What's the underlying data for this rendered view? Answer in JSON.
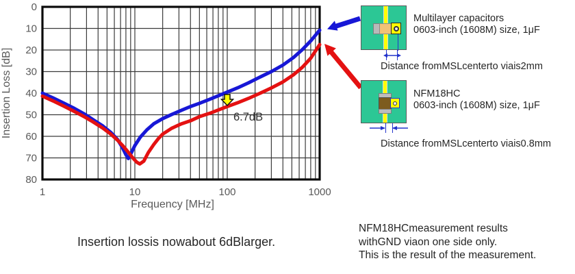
{
  "chart_data": {
    "type": "line",
    "title": "",
    "xlabel": "Frequency  [MHz]",
    "ylabel": "Insertion Loss [dB]",
    "x_scale": "log",
    "xlim": [
      1,
      1000
    ],
    "ylim": [
      0,
      80
    ],
    "y_inverted": true,
    "grid": true,
    "xticks": [
      1,
      10,
      100,
      1000
    ],
    "yticks": [
      0,
      10,
      20,
      30,
      40,
      50,
      60,
      70,
      80
    ],
    "series": [
      {
        "id": "blue-curve-multilayer-capacitor",
        "name": "Multilayer capacitors 0603-inch (1608M) size, 1μF",
        "color": "#1717d6",
        "x": [
          1,
          1.3,
          1.7,
          2.2,
          2.8,
          3.5,
          4.5,
          5.5,
          6.5,
          7.3,
          8,
          8.5,
          9,
          10,
          11.5,
          13.5,
          16,
          20,
          25,
          32,
          40,
          50,
          65,
          80,
          100,
          130,
          170,
          220,
          300,
          400,
          520,
          650,
          800,
          1000
        ],
        "y": [
          40,
          42.2,
          44.6,
          47,
          49.5,
          52.2,
          55.2,
          58.2,
          61.5,
          65,
          68.5,
          70.3,
          68.3,
          64.3,
          60.3,
          57,
          54.2,
          51.8,
          49.9,
          47.9,
          46.2,
          44.7,
          42.8,
          41.2,
          39.5,
          37.5,
          35.2,
          32.8,
          30,
          27,
          23.5,
          19.8,
          15.8,
          10.8
        ]
      },
      {
        "id": "red-curve-nfm18hc",
        "name": "NFM18HC 0603-inch (1608M) size, 1μF",
        "color": "#e41111",
        "x": [
          1,
          1.3,
          1.7,
          2.2,
          2.8,
          3.5,
          4.5,
          5.5,
          6.5,
          7.5,
          8.5,
          9.5,
          10.5,
          11.3,
          12.5,
          14,
          16,
          18,
          20,
          25,
          32,
          40,
          50,
          65,
          80,
          100,
          130,
          170,
          220,
          300,
          400,
          520,
          650,
          800,
          1000
        ],
        "y": [
          41.4,
          43.6,
          46,
          48.4,
          50.8,
          53.2,
          56.2,
          59,
          61.8,
          64.6,
          67.4,
          70,
          72,
          72.8,
          71.5,
          67.5,
          63.8,
          61,
          59,
          56.3,
          54.2,
          52.8,
          50.9,
          49.3,
          47.8,
          46.2,
          44.4,
          42.4,
          40.3,
          37.6,
          34.8,
          31.5,
          28,
          23.8,
          17.5
        ]
      }
    ],
    "annotations": [
      {
        "text": "6.7dB",
        "x": 100,
        "between_series": [
          0,
          1
        ],
        "arrow": "yellow-down-block-arrow"
      }
    ]
  },
  "right_panel": {
    "cap": {
      "line1": "Multilayer capacitors",
      "line2": "0603-inch (1608M) size, 1μF",
      "distance": "Distance fromMSLcenterto viais2mm"
    },
    "nfm": {
      "line1": "NFM18HC",
      "line2": "0603-inch (1608M) size, 1μF",
      "distance": "Distance fromMSLcenterto viais0.8mm"
    }
  },
  "captions": {
    "bottom_left": "Insertion lossis nowabout 6dBlarger.",
    "br1": "NFM18HCmeasurement results",
    "br2": "withGND viaon one side only.",
    "br3": "This is the result of the measurement."
  },
  "colors": {
    "blue_series": "#1717d6",
    "red_series": "#e41111",
    "pcb_green": "#2cc795",
    "msl_yellow": "#ffff00",
    "annotation_arrow_yellow": "#ffff00",
    "grid_line": "#3a3a3a",
    "axis_text": "#595959",
    "dimension_blue": "#2233cc"
  }
}
